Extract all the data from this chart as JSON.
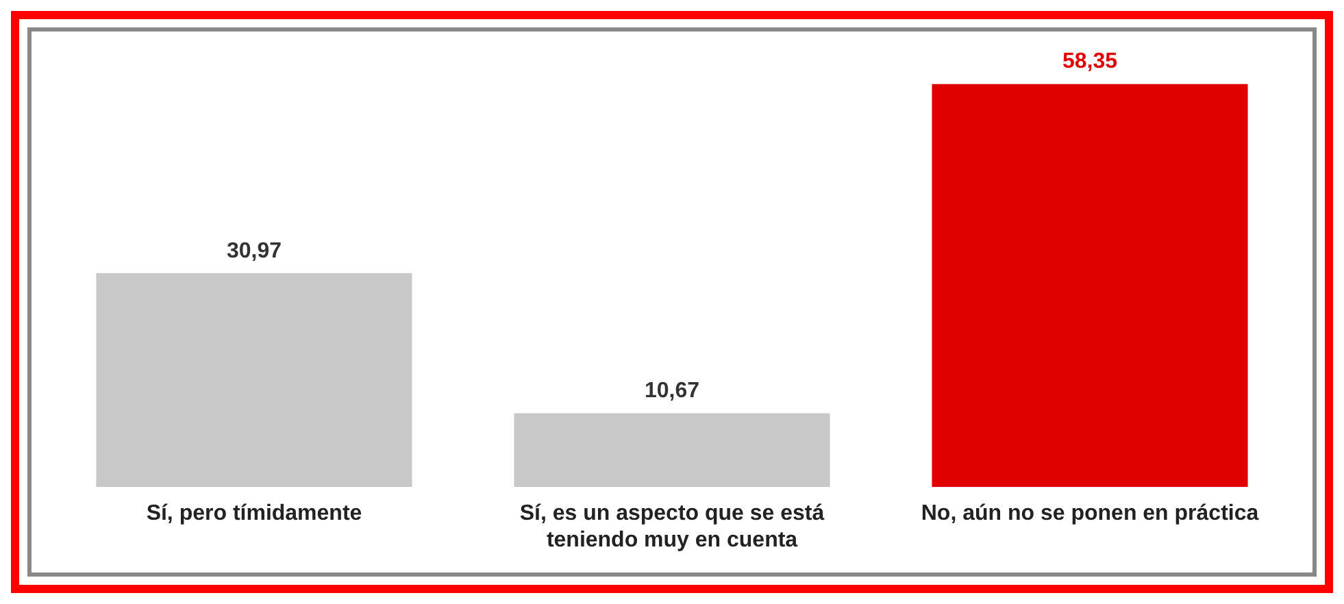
{
  "chart_data": {
    "type": "bar",
    "categories": [
      "Sí, pero tímidamente",
      "Sí, es un aspecto que se está teniendo muy en cuenta",
      "No, aún no se ponen en práctica"
    ],
    "values": [
      30.97,
      10.67,
      58.35
    ],
    "colors": [
      "#c8c8c8",
      "#c8c8c8",
      "#e00000"
    ],
    "value_labels": [
      "30,97",
      "10,67",
      "58,35"
    ],
    "grid": false,
    "legend": false
  }
}
